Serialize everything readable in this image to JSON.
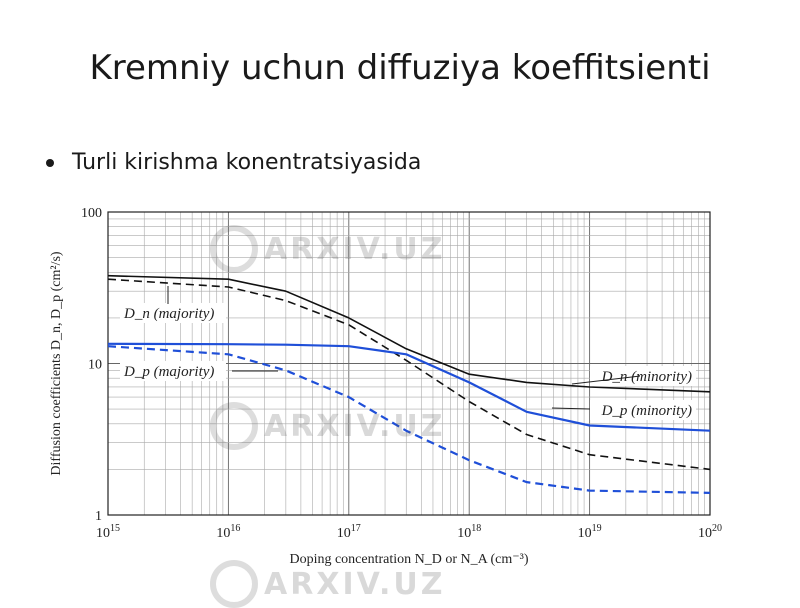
{
  "slide": {
    "title": "Kremniy uchun diffuziya koeffitsienti",
    "bullet": "Turli kirishma konentratsiyasida"
  },
  "watermark": {
    "text": "ARXIV.UZ"
  },
  "chart_data": {
    "type": "line",
    "xscale": "log",
    "yscale": "log",
    "xlim": [
      1000000000000000.0,
      1e+20
    ],
    "ylim": [
      1,
      100
    ],
    "grid": true,
    "xlabel": "Doping concentration N_D or N_A (cm⁻³)",
    "ylabel": "Diffusion coefficients D_n, D_p (cm²/s)",
    "x_tick_labels": [
      "10^15",
      "10^16",
      "10^17",
      "10^18",
      "10^19",
      "10^20"
    ],
    "y_tick_labels": [
      "1",
      "10",
      "100"
    ],
    "x_exponents": [
      15,
      16,
      17,
      18,
      19,
      20
    ],
    "series": [
      {
        "name": "D_n (minority)",
        "color": "#111111",
        "dash": "solid",
        "x": [
          1000000000000000.0,
          1e+16,
          3e+16,
          1e+17,
          3e+17,
          1e+18,
          3e+18,
          1e+19,
          1e+20
        ],
        "y": [
          38,
          36,
          30,
          20,
          12.5,
          8.5,
          7.5,
          7,
          6.5
        ]
      },
      {
        "name": "D_n (majority)",
        "color": "#111111",
        "dash": "dashed",
        "x": [
          1000000000000000.0,
          1e+16,
          3e+16,
          1e+17,
          3e+17,
          1e+18,
          3e+18,
          1e+19,
          1e+20
        ],
        "y": [
          36,
          32,
          26,
          18,
          10.5,
          5.6,
          3.4,
          2.5,
          2
        ]
      },
      {
        "name": "D_p (minority)",
        "color": "#1f4fd8",
        "dash": "solid",
        "x": [
          1000000000000000.0,
          1e+16,
          3e+16,
          1e+17,
          3e+17,
          1e+18,
          3e+18,
          1e+19,
          1e+20
        ],
        "y": [
          13.5,
          13.4,
          13.3,
          13,
          11.5,
          7.5,
          4.8,
          3.9,
          3.6
        ]
      },
      {
        "name": "D_p (majority)",
        "color": "#1f4fd8",
        "dash": "dashed",
        "x": [
          1000000000000000.0,
          1e+16,
          3e+16,
          1e+17,
          3e+17,
          1e+18,
          3e+18,
          1e+19,
          1e+20
        ],
        "y": [
          13,
          11.5,
          9,
          6,
          3.6,
          2.3,
          1.65,
          1.45,
          1.4
        ]
      }
    ],
    "annotations": [
      {
        "label": "D_n (majority)"
      },
      {
        "label": "D_p (majority)"
      },
      {
        "label": "D_n (minority)"
      },
      {
        "label": "D_p (minority)"
      }
    ]
  }
}
